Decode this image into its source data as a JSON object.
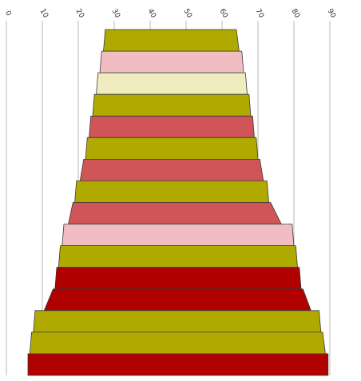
{
  "chart_data": {
    "type": "funnel",
    "title": "",
    "xlabel": "",
    "ylabel": "",
    "xlim": [
      0,
      90
    ],
    "x_ticks": [
      "0",
      "10",
      "20",
      "30",
      "40",
      "50",
      "60",
      "70",
      "80",
      "90"
    ],
    "grid": "vertical",
    "legend": "none",
    "bands": [
      {
        "start": 27.5,
        "end": 64.0,
        "color": "#b0aa00"
      },
      {
        "start": 26.5,
        "end": 65.5,
        "color": "#f0bec2"
      },
      {
        "start": 25.5,
        "end": 66.5,
        "color": "#f0ecc0"
      },
      {
        "start": 24.5,
        "end": 67.5,
        "color": "#b0aa00"
      },
      {
        "start": 23.5,
        "end": 68.5,
        "color": "#d05558"
      },
      {
        "start": 22.5,
        "end": 69.5,
        "color": "#b0aa00"
      },
      {
        "start": 21.5,
        "end": 70.5,
        "color": "#d05558"
      },
      {
        "start": 19.5,
        "end": 72.5,
        "color": "#b0aa00"
      },
      {
        "start": 18.5,
        "end": 73.5,
        "color": "#d05558"
      },
      {
        "start": 16.0,
        "end": 79.5,
        "color": "#f0bec2"
      },
      {
        "start": 15.0,
        "end": 80.5,
        "color": "#b0aa00"
      },
      {
        "start": 14.0,
        "end": 81.5,
        "color": "#b00000"
      },
      {
        "start": 13.0,
        "end": 82.5,
        "color": "#b00000"
      },
      {
        "start": 8.0,
        "end": 87.0,
        "color": "#b0aa00"
      },
      {
        "start": 7.0,
        "end": 88.0,
        "color": "#b0aa00"
      },
      {
        "start": 6.0,
        "end": 89.5,
        "color": "#b00000"
      }
    ]
  }
}
